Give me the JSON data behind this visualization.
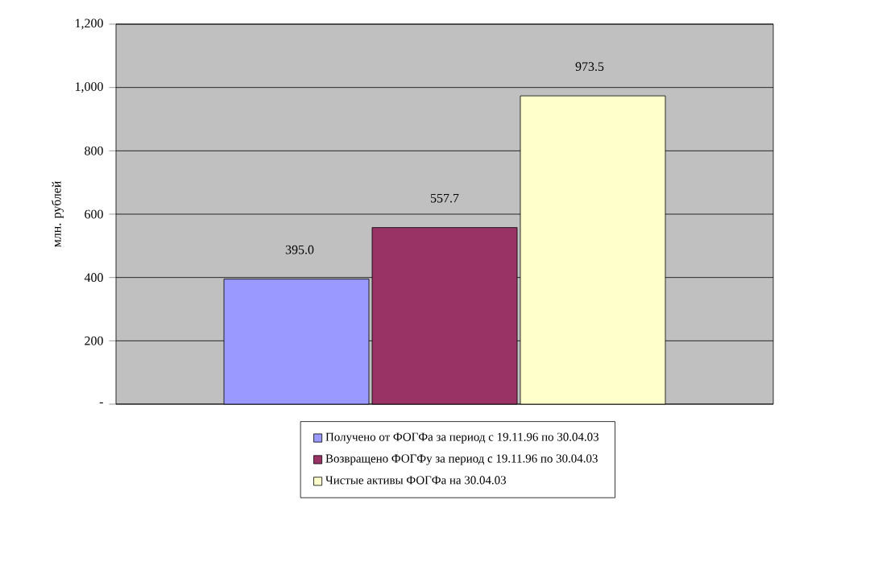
{
  "chart_data": {
    "type": "bar",
    "ylabel": "млн. рублей",
    "categories": [
      null
    ],
    "series": [
      {
        "name": "Получено от ФОГФа за период с 19.11.96 по 30.04.03",
        "color": "#9999ff",
        "values": [
          395.0
        ],
        "value_labels": [
          "395.0"
        ]
      },
      {
        "name": "Возвращено ФОГФу за период с 19.11.96 по 30.04.03",
        "color": "#993366",
        "values": [
          557.7
        ],
        "value_labels": [
          "557.7"
        ]
      },
      {
        "name": "Чистые активы ФОГФа на 30.04.03",
        "color": "#ffffcc",
        "values": [
          973.5
        ],
        "value_labels": [
          "973.5"
        ]
      }
    ],
    "ylim": [
      0,
      1200
    ],
    "yticks": [
      {
        "value": 0,
        "label": "-"
      },
      200,
      400,
      600,
      800,
      {
        "value": 1000,
        "label": "1,000"
      },
      {
        "value": 1200,
        "label": "1,200"
      }
    ],
    "grid": "y",
    "legend": "bottom"
  }
}
